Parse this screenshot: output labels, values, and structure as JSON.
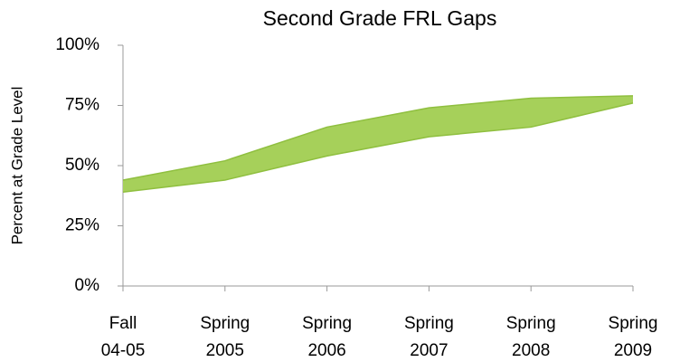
{
  "chart_data": {
    "type": "band",
    "title": "Second Grade FRL Gaps",
    "y_label": "Percent at Grade Level",
    "categories": [
      [
        "Fall",
        "04-05"
      ],
      [
        "Spring",
        "2005"
      ],
      [
        "Spring",
        "2006"
      ],
      [
        "Spring",
        "2007"
      ],
      [
        "Spring",
        "2008"
      ],
      [
        "Spring",
        "2009"
      ]
    ],
    "series": [
      {
        "color": "#8fbf3f",
        "values": [
          44,
          52,
          66,
          74,
          78,
          79
        ]
      },
      {
        "color": "#8fbf3f",
        "values": [
          39,
          44,
          54,
          62,
          66,
          76
        ]
      }
    ],
    "fill": "#a6d05a",
    "ylim": [
      0,
      100
    ],
    "yticks": [
      {
        "value": 0,
        "label": "0%"
      },
      {
        "value": 25,
        "label": "25%"
      },
      {
        "value": 50,
        "label": "50%"
      },
      {
        "value": 75,
        "label": "75%"
      },
      {
        "value": 100,
        "label": "100%"
      }
    ],
    "grid": false
  }
}
